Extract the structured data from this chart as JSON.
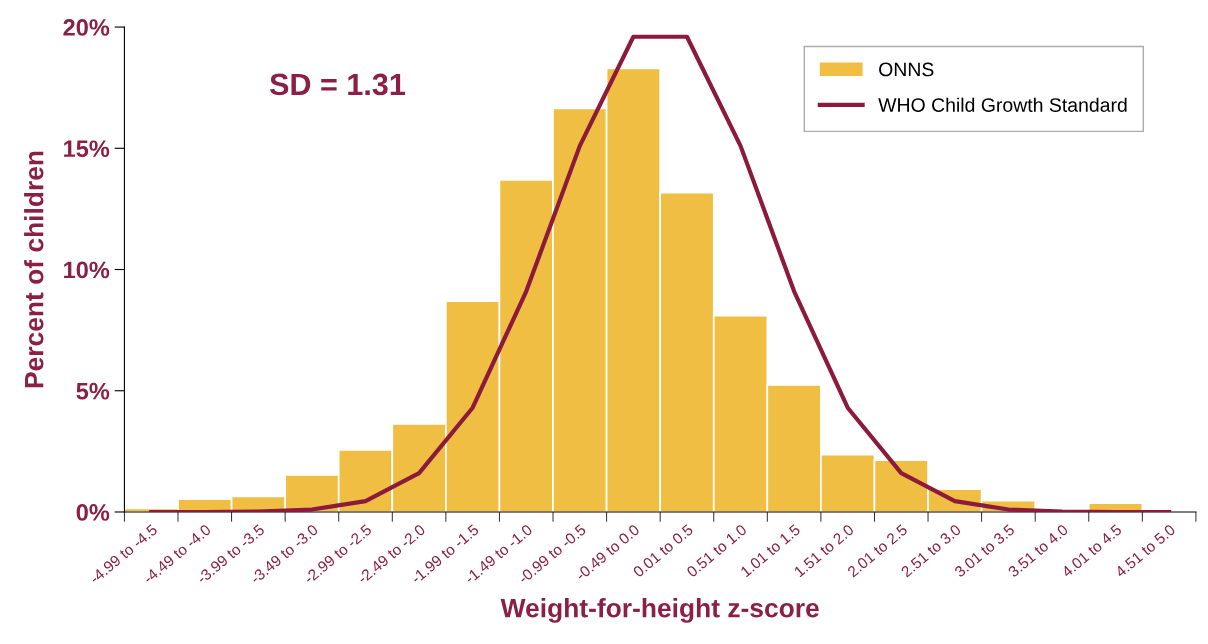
{
  "chart_data": {
    "type": "bar",
    "xlabel": "Weight-for-height z-score",
    "ylabel": "Percent of children",
    "categories": [
      "-4.99 to -4.5",
      "-4.49 to -4.0",
      "-3.99 to -3.5",
      "-3.49 to -3.0",
      "-2.99 to -2.5",
      "-2.49 to -2.0",
      "-1.99 to -1.5",
      "-1.49 to -1.0",
      "-0.99 to -0.5",
      "-0.49 to 0.0",
      "0.01 to 0.5",
      "0.51 to 1.0",
      "1.01 to 1.5",
      "1.51 to 2.0",
      "2.01 to 2.5",
      "2.51 to 3.0",
      "3.01 to 3.5",
      "3.51 to 4.0",
      "4.01 to 4.5",
      "4.51 to 5.0"
    ],
    "series": [
      {
        "name": "ONNS",
        "color": "#f0be42",
        "values": [
          0.15,
          0.53,
          0.64,
          1.53,
          2.56,
          3.63,
          8.69,
          13.7,
          16.64,
          18.29,
          13.17,
          8.1,
          5.24,
          2.36,
          2.14,
          0.94,
          0.47,
          0.0,
          0.36,
          null
        ]
      },
      {
        "name": "WHO Child Growth Standard",
        "type": "line",
        "color": "#8b1a3c",
        "values": [
          0.0,
          0.0,
          0.02,
          0.1,
          0.45,
          1.6,
          4.3,
          9.1,
          15.1,
          19.6,
          19.6,
          15.1,
          9.1,
          4.3,
          1.6,
          0.45,
          0.1,
          0.02,
          0.0,
          0.0
        ]
      }
    ],
    "ylim": [
      0,
      20
    ],
    "yticks": [
      {
        "value": 0,
        "label": "0%"
      },
      {
        "value": 5,
        "label": "5%"
      },
      {
        "value": 10,
        "label": "10%"
      },
      {
        "value": 15,
        "label": "15%"
      },
      {
        "value": 20,
        "label": "20%"
      }
    ],
    "annotations": [
      "SD = 1.31"
    ],
    "legend": "top right",
    "grid": false,
    "marker": "none",
    "line_style": "solid"
  }
}
